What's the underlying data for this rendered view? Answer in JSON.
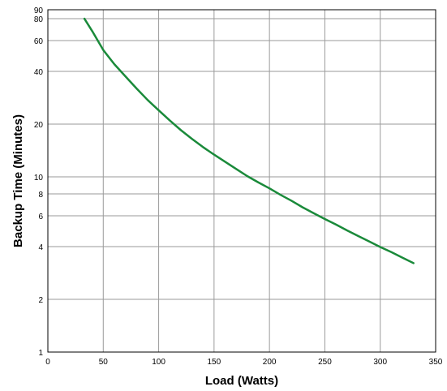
{
  "chart_data": {
    "type": "line",
    "xlabel": "Load (Watts)",
    "ylabel": "Backup Time (Minutes)",
    "xlim": [
      0,
      350
    ],
    "ylim": [
      1,
      90
    ],
    "y_scale": "log",
    "grid": true,
    "x_ticks": [
      0,
      50,
      100,
      150,
      200,
      250,
      300,
      350
    ],
    "y_ticks": [
      1,
      2,
      4,
      6,
      8,
      10,
      20,
      40,
      60,
      80,
      90
    ],
    "x_tick_labels": [
      "0",
      "50",
      "100",
      "150",
      "200",
      "250",
      "300",
      "350"
    ],
    "y_tick_labels": [
      "1",
      "2",
      "4",
      "6",
      "8",
      "10",
      "20",
      "40",
      "60",
      "80",
      "90"
    ],
    "series": [
      {
        "color": "#1a8a3a",
        "x": [
          33,
          40,
          50,
          60,
          70,
          80,
          90,
          100,
          110,
          120,
          130,
          140,
          150,
          160,
          170,
          180,
          190,
          200,
          210,
          220,
          230,
          240,
          250,
          260,
          270,
          280,
          290,
          300,
          310,
          320,
          330
        ],
        "y": [
          80,
          68,
          53,
          44,
          37.5,
          32,
          27.5,
          24,
          21,
          18.5,
          16.5,
          14.8,
          13.4,
          12.2,
          11.1,
          10.1,
          9.3,
          8.6,
          7.9,
          7.3,
          6.7,
          6.2,
          5.75,
          5.35,
          4.95,
          4.6,
          4.28,
          3.98,
          3.72,
          3.46,
          3.22
        ]
      }
    ]
  }
}
